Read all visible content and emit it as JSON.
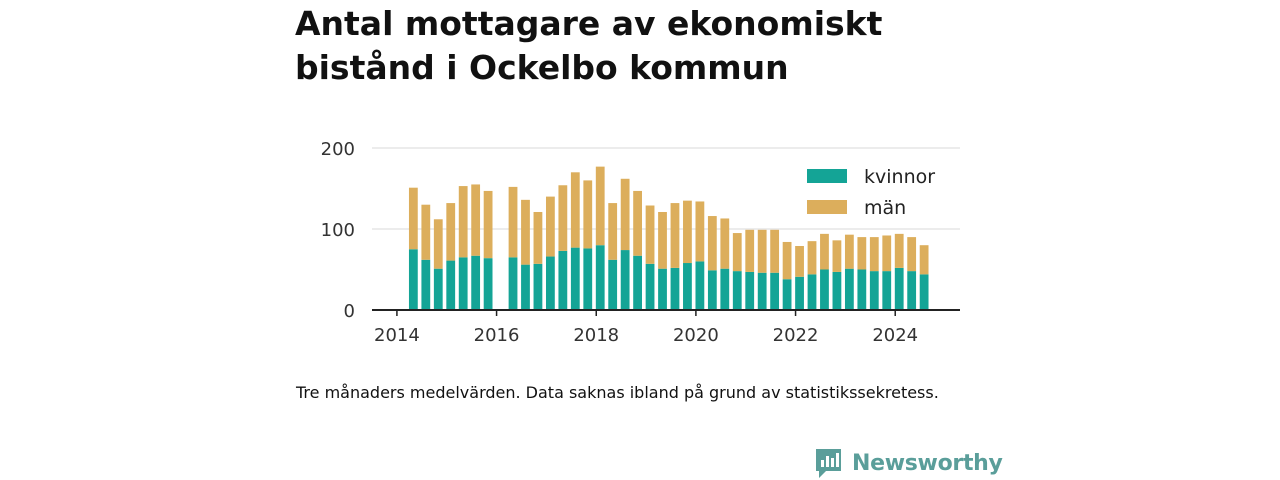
{
  "header": {
    "title_line1": "Antal mottagare av ekonomiskt",
    "title_line2": "bistånd i Ockelbo kommun"
  },
  "footer": {
    "note": "Tre månaders medelvärden. Data saknas ibland på grund av statistikssekretess.",
    "brand": "Newsworthy"
  },
  "colors": {
    "kvinnor": "#14a496",
    "man": "#dcae5c",
    "axis": "#222222",
    "grid": "#d9d9d9",
    "brand": "#5a9e9a"
  },
  "chart_data": {
    "type": "bar",
    "stacked": true,
    "ylim": [
      0,
      200
    ],
    "yticks": [
      0,
      100,
      200
    ],
    "xlim": [
      2013.5,
      2025.3
    ],
    "xticks": [
      2014,
      2016,
      2018,
      2020,
      2022,
      2024
    ],
    "grid": true,
    "legend_position": "top-right",
    "x": [
      2014.33,
      2014.58,
      2014.83,
      2015.08,
      2015.33,
      2015.58,
      2015.83,
      2016.33,
      2016.58,
      2016.83,
      2017.08,
      2017.33,
      2017.58,
      2017.83,
      2018.08,
      2018.33,
      2018.58,
      2018.83,
      2019.08,
      2019.33,
      2019.58,
      2019.83,
      2020.08,
      2020.33,
      2020.58,
      2020.83,
      2021.08,
      2021.33,
      2021.58,
      2021.83,
      2022.08,
      2022.33,
      2022.58,
      2022.83,
      2023.08,
      2023.33,
      2023.58,
      2023.83,
      2024.08,
      2024.33,
      2024.58
    ],
    "series": [
      {
        "name": "kvinnor",
        "values": [
          75,
          62,
          51,
          61,
          65,
          67,
          64,
          65,
          56,
          57,
          66,
          73,
          77,
          76,
          80,
          62,
          74,
          67,
          57,
          51,
          52,
          58,
          60,
          49,
          51,
          48,
          47,
          46,
          46,
          38,
          41,
          44,
          50,
          47,
          51,
          50,
          48,
          48,
          52,
          48,
          44
        ]
      },
      {
        "name": "män",
        "values": [
          76,
          68,
          61,
          71,
          88,
          88,
          83,
          87,
          80,
          64,
          74,
          81,
          93,
          84,
          97,
          70,
          88,
          80,
          72,
          70,
          80,
          77,
          74,
          67,
          62,
          47,
          52,
          53,
          53,
          46,
          38,
          41,
          44,
          39,
          42,
          40,
          42,
          44,
          42,
          42,
          36
        ]
      }
    ]
  }
}
